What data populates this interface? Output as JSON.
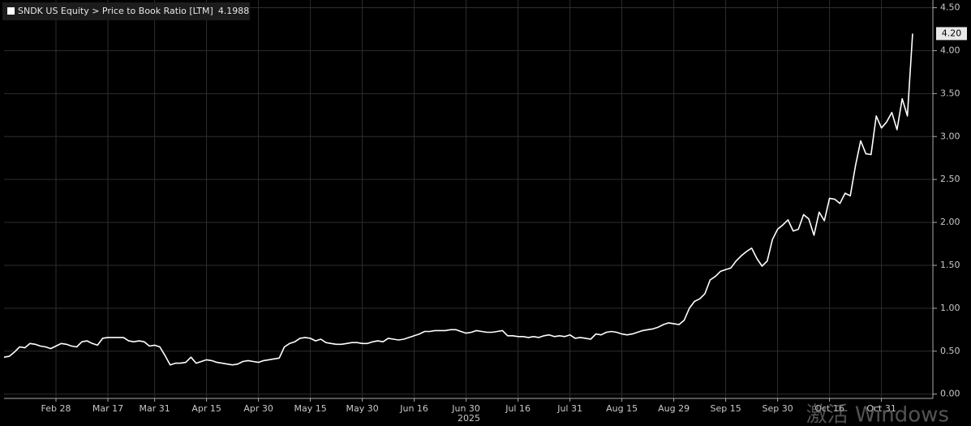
{
  "chart_data": {
    "type": "line",
    "legend_value_prefix": "",
    "categories": [
      null,
      null,
      null,
      null,
      null,
      null,
      null,
      null,
      null,
      null,
      "Feb 28",
      null,
      null,
      null,
      null,
      null,
      null,
      null,
      null,
      null,
      "Mar 17",
      null,
      null,
      null,
      null,
      null,
      null,
      null,
      null,
      "Mar 31",
      null,
      null,
      null,
      null,
      null,
      null,
      null,
      null,
      null,
      "Apr 15",
      null,
      null,
      null,
      null,
      null,
      null,
      null,
      null,
      null,
      "Apr 30",
      null,
      null,
      null,
      null,
      null,
      null,
      null,
      null,
      null,
      "May 15",
      null,
      null,
      null,
      null,
      null,
      null,
      null,
      null,
      null,
      "May 30",
      null,
      null,
      null,
      null,
      null,
      null,
      null,
      null,
      null,
      "Jun 16",
      null,
      null,
      null,
      null,
      null,
      null,
      null,
      null,
      null,
      "Jun 30",
      null,
      null,
      null,
      null,
      null,
      null,
      null,
      null,
      null,
      "Jul 16",
      null,
      null,
      null,
      null,
      null,
      null,
      null,
      null,
      null,
      "Jul 31",
      null,
      null,
      null,
      null,
      null,
      null,
      null,
      null,
      null,
      "Aug 15",
      null,
      null,
      null,
      null,
      null,
      null,
      null,
      null,
      null,
      "Aug 29",
      null,
      null,
      null,
      null,
      null,
      null,
      null,
      null,
      null,
      "Sep 15",
      null,
      null,
      null,
      null,
      null,
      null,
      null,
      null,
      null,
      "Sep 30",
      null,
      null,
      null,
      null,
      null,
      null,
      null,
      null,
      null,
      "Oct 16",
      null,
      null,
      null,
      null,
      null,
      null,
      null,
      null,
      null,
      "Oct 31",
      null,
      null,
      null,
      null,
      null,
      null
    ],
    "x_label": "2025",
    "series": [
      {
        "name": "SNDK US Equity > Price to Book Ratio [LTM]",
        "color": "#ffffff",
        "values": [
          0.43,
          0.44,
          0.49,
          0.55,
          0.54,
          0.59,
          0.58,
          0.56,
          0.55,
          0.53,
          0.56,
          0.59,
          0.58,
          0.56,
          0.55,
          0.61,
          0.62,
          0.59,
          0.57,
          0.65,
          0.66,
          0.66,
          0.66,
          0.66,
          0.62,
          0.61,
          0.62,
          0.61,
          0.56,
          0.57,
          0.55,
          0.45,
          0.34,
          0.36,
          0.36,
          0.37,
          0.43,
          0.36,
          0.38,
          0.4,
          0.39,
          0.37,
          0.36,
          0.35,
          0.34,
          0.35,
          0.38,
          0.39,
          0.38,
          0.37,
          0.39,
          0.4,
          0.41,
          0.42,
          0.55,
          0.59,
          0.61,
          0.65,
          0.66,
          0.65,
          0.62,
          0.64,
          0.6,
          0.59,
          0.58,
          0.58,
          0.59,
          0.6,
          0.6,
          0.59,
          0.59,
          0.61,
          0.62,
          0.61,
          0.65,
          0.64,
          0.63,
          0.64,
          0.66,
          0.68,
          0.7,
          0.73,
          0.73,
          0.74,
          0.74,
          0.74,
          0.75,
          0.75,
          0.73,
          0.71,
          0.72,
          0.74,
          0.73,
          0.72,
          0.72,
          0.73,
          0.74,
          0.68,
          0.68,
          0.67,
          0.67,
          0.66,
          0.67,
          0.66,
          0.68,
          0.69,
          0.67,
          0.68,
          0.67,
          0.69,
          0.65,
          0.66,
          0.65,
          0.64,
          0.7,
          0.69,
          0.72,
          0.73,
          0.72,
          0.7,
          0.69,
          0.7,
          0.72,
          0.74,
          0.75,
          0.76,
          0.78,
          0.81,
          0.83,
          0.82,
          0.81,
          0.86,
          1.0,
          1.08,
          1.11,
          1.17,
          1.33,
          1.37,
          1.43,
          1.45,
          1.47,
          1.55,
          1.61,
          1.66,
          1.7,
          1.58,
          1.49,
          1.55,
          1.8,
          1.92,
          1.97,
          2.03,
          1.9,
          1.92,
          2.09,
          2.04,
          1.85,
          2.12,
          2.02,
          2.28,
          2.27,
          2.22,
          2.34,
          2.31,
          2.66,
          2.95,
          2.8,
          2.79,
          3.24,
          3.1,
          3.17,
          3.28,
          3.08,
          3.44,
          3.24,
          4.1988
        ]
      }
    ],
    "last_value_label": "4.20",
    "ylim": [
      -0.05,
      4.59
    ],
    "yticks": [
      {
        "value": 0,
        "label": "0.00"
      },
      {
        "value": 0.5,
        "label": "0.50"
      },
      {
        "value": 1,
        "label": "1.00"
      },
      {
        "value": 1.5,
        "label": "1.50"
      },
      {
        "value": 2,
        "label": "2.00"
      },
      {
        "value": 2.5,
        "label": "2.50"
      },
      {
        "value": 3,
        "label": "3.00"
      },
      {
        "value": 3.5,
        "label": "3.50"
      },
      {
        "value": 4,
        "label": "4.00"
      },
      {
        "value": 4.5,
        "label": "4.50"
      }
    ],
    "grid": true,
    "watermark": "激活 Windows"
  }
}
